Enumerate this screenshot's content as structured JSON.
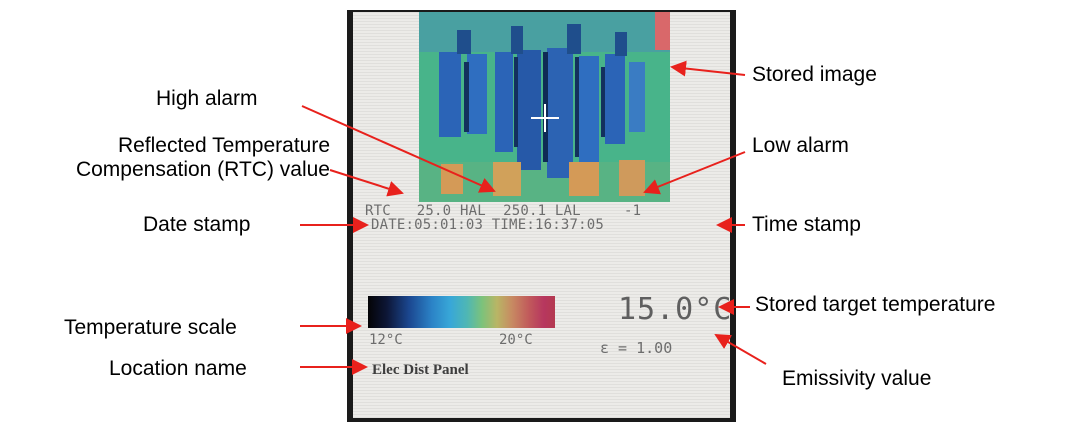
{
  "callouts": {
    "stored_image": "Stored image",
    "high_alarm": "High alarm",
    "rtc_line1": "Reflected Temperature",
    "rtc_line2": "Compensation (RTC) value",
    "low_alarm": "Low alarm",
    "date_stamp": "Date stamp",
    "time_stamp": "Time stamp",
    "stored_target_temperature": "Stored target temperature",
    "temperature_scale": "Temperature scale",
    "location_name": "Location name",
    "emissivity_value": "Emissivity value"
  },
  "screen": {
    "rtc_label": "RTC",
    "rtc_value": "25.0",
    "hal_label": "HAL",
    "hal_value": "250.1",
    "lal_label": "LAL",
    "lal_value": "-1",
    "date_text": "DATE:05:01:03 TIME:16:37:05",
    "scale_min": "12°C",
    "scale_max": "20°C",
    "target_temperature": "15.0°C",
    "emissivity": "ε = 1.00",
    "location": "Elec Dist Panel"
  },
  "colors": {
    "arrow": "#e8211c",
    "thermal_background": "#48b48a",
    "thermal_cold": "#2b64b7",
    "thermal_hot": "#d9686a",
    "thermal_warm": "#d49a57"
  }
}
